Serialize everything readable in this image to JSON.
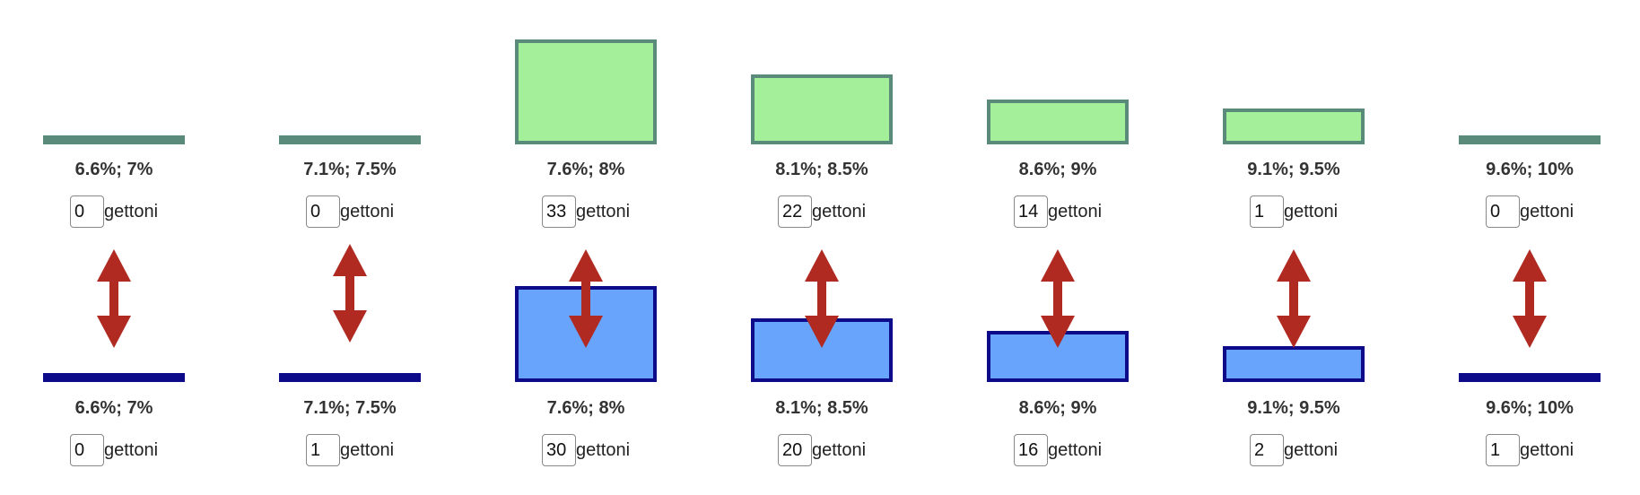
{
  "unit_label": "gettoni",
  "colors": {
    "top_fill": "#a4ef9a",
    "top_border": "#5a8a7a",
    "bottom_fill": "#68a4fb",
    "bottom_border": "#0d0b8a",
    "arrow": "#b02a22"
  },
  "arrow_icon": "double-headed-vertical-arrow",
  "columns": [
    {
      "range": "6.6%; 7%",
      "top_value": "0",
      "bottom_value": "0"
    },
    {
      "range": "7.1%; 7.5%",
      "top_value": "0",
      "bottom_value": "1"
    },
    {
      "range": "7.6%; 8%",
      "top_value": "33",
      "bottom_value": "30"
    },
    {
      "range": "8.1%; 8.5%",
      "top_value": "22",
      "bottom_value": "20"
    },
    {
      "range": "8.6%; 9%",
      "top_value": "14",
      "bottom_value": "16"
    },
    {
      "range": "9.1%; 9.5%",
      "top_value": "1",
      "bottom_value": "2"
    },
    {
      "range": "9.6%; 10%",
      "top_value": "0",
      "bottom_value": "1"
    }
  ]
}
